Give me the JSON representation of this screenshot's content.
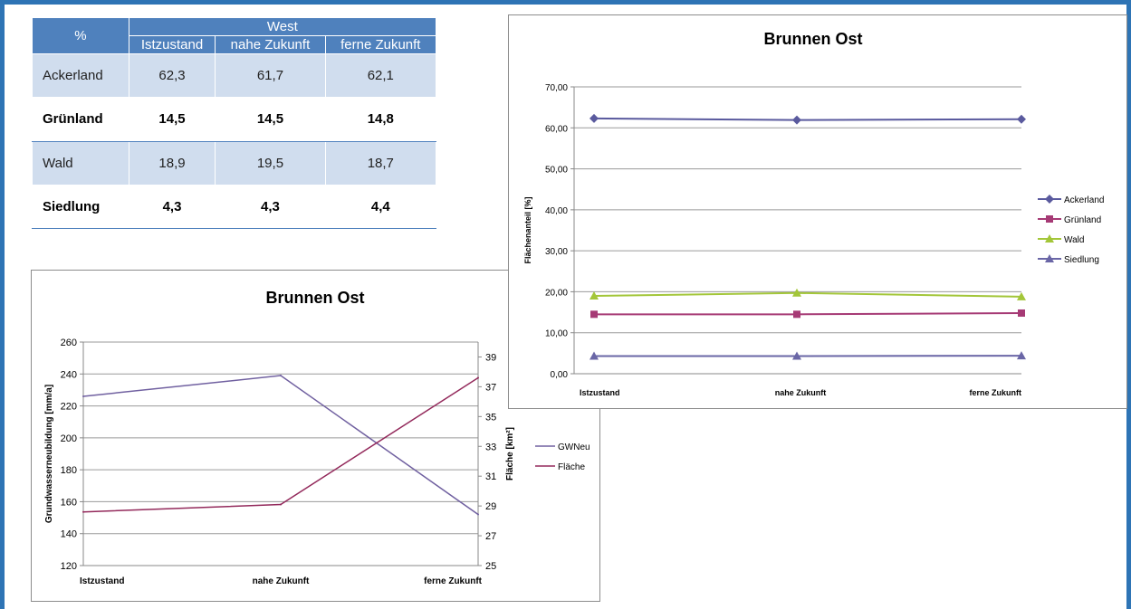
{
  "table": {
    "corner": "%",
    "group": "West",
    "columns": [
      "Istzustand",
      "nahe Zukunft",
      "ferne Zukunft"
    ],
    "rows": [
      {
        "label": "Ackerland",
        "values": [
          "62,3",
          "61,7",
          "62,1"
        ]
      },
      {
        "label": "Grünland",
        "values": [
          "14,5",
          "14,5",
          "14,8"
        ]
      },
      {
        "label": "Wald",
        "values": [
          "18,9",
          "19,5",
          "18,7"
        ]
      },
      {
        "label": "Siedlung",
        "values": [
          "4,3",
          "4,3",
          "4,4"
        ]
      }
    ]
  },
  "chart_data": [
    {
      "type": "line",
      "title": "Brunnen Ost",
      "categories": [
        "Istzustand",
        "nahe Zukunft",
        "ferne Zukunft"
      ],
      "ylabel": "Grundwasserneubildung [mm/a]",
      "ylim": [
        120,
        260
      ],
      "yticks": [
        120,
        140,
        160,
        180,
        200,
        220,
        240,
        260
      ],
      "y2label": "Fläche [km²]",
      "y2lim": [
        25,
        40
      ],
      "y2ticks": [
        25,
        27,
        29,
        31,
        33,
        35,
        37,
        39
      ],
      "grid": true,
      "legend": "right",
      "series": [
        {
          "name": "GWNeu",
          "axis": "left",
          "color": "#7060A0",
          "values": [
            226,
            239,
            152
          ]
        },
        {
          "name": "Fläche",
          "axis": "right",
          "color": "#93295B",
          "values": [
            28.6,
            29.1,
            37.6
          ]
        }
      ]
    },
    {
      "type": "line",
      "title": "Brunnen Ost",
      "categories": [
        "Istzustand",
        "nahe Zukunft",
        "ferne Zukunft"
      ],
      "ylabel": "Flächenanteil [%]",
      "ylim": [
        0,
        70
      ],
      "yticks": [
        "0,00",
        "10,00",
        "20,00",
        "30,00",
        "40,00",
        "50,00",
        "60,00",
        "70,00"
      ],
      "grid": true,
      "legend": "right",
      "series": [
        {
          "name": "Ackerland",
          "marker": "diamond",
          "color": "#5A5A9E",
          "values": [
            62.3,
            61.9,
            62.1
          ]
        },
        {
          "name": "Grünland",
          "marker": "square",
          "color": "#A63A75",
          "values": [
            14.5,
            14.5,
            14.8
          ]
        },
        {
          "name": "Wald",
          "marker": "triangle",
          "color": "#A3C639",
          "values": [
            19.0,
            19.7,
            18.8
          ]
        },
        {
          "name": "Siedlung",
          "marker": "triangle",
          "color": "#6A66A6",
          "values": [
            4.3,
            4.3,
            4.4
          ]
        }
      ]
    }
  ]
}
